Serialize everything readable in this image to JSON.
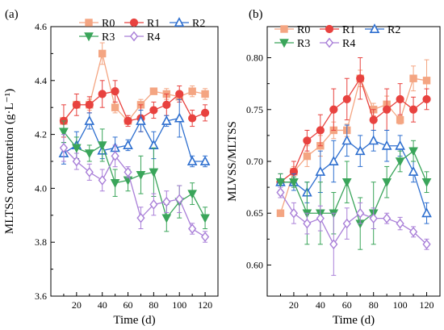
{
  "chart_data": [
    {
      "type": "line",
      "panel_label": "(a)",
      "xlabel": "Time (d)",
      "ylabel": "MLTSS concentration (g·L⁻¹)",
      "xlim": [
        0,
        130
      ],
      "ylim": [
        3.6,
        4.6
      ],
      "xticks": [
        20,
        40,
        60,
        80,
        100,
        120
      ],
      "yticks": [
        3.6,
        3.8,
        4.0,
        4.2,
        4.4,
        4.6
      ],
      "ytick_labels": [
        "3.6",
        "3.8",
        "4.0",
        "4.2",
        "4.4",
        "4.6"
      ],
      "legend_position": "top",
      "x": [
        10,
        20,
        30,
        40,
        50,
        60,
        70,
        80,
        90,
        100,
        110,
        120
      ],
      "series": [
        {
          "name": "R0",
          "values": [
            4.25,
            4.31,
            4.31,
            4.5,
            4.3,
            4.25,
            4.31,
            4.36,
            4.35,
            4.34,
            4.36,
            4.35
          ],
          "errors": [
            0.01,
            0.01,
            0.02,
            0.04,
            0.02,
            0.01,
            0.02,
            0.01,
            0.02,
            0.01,
            0.02,
            0.02
          ]
        },
        {
          "name": "R1",
          "values": [
            4.25,
            4.31,
            4.31,
            4.35,
            4.36,
            4.25,
            4.26,
            4.29,
            4.31,
            4.35,
            4.26,
            4.28
          ],
          "errors": [
            0.06,
            0.04,
            0.03,
            0.05,
            0.04,
            0.02,
            0.05,
            0.03,
            0.04,
            0.03,
            0.03,
            0.03
          ]
        },
        {
          "name": "R2",
          "values": [
            4.13,
            4.16,
            4.25,
            4.14,
            4.15,
            4.16,
            4.25,
            4.16,
            4.25,
            4.26,
            4.1,
            4.1
          ],
          "errors": [
            0.04,
            0.05,
            0.03,
            0.03,
            0.04,
            0.02,
            0.04,
            0.05,
            0.02,
            0.07,
            0.02,
            0.02
          ]
        },
        {
          "name": "R3",
          "values": [
            4.21,
            4.15,
            4.13,
            4.16,
            4.02,
            4.03,
            4.05,
            4.06,
            3.89,
            3.95,
            3.98,
            3.89
          ],
          "errors": [
            0.04,
            0.04,
            0.03,
            0.06,
            0.05,
            0.04,
            0.07,
            0.09,
            0.05,
            0.06,
            0.04,
            0.04
          ]
        },
        {
          "name": "R4",
          "values": [
            4.15,
            4.1,
            4.06,
            4.03,
            4.12,
            4.06,
            3.89,
            3.94,
            3.95,
            3.96,
            3.85,
            3.82
          ],
          "errors": [
            0.05,
            0.03,
            0.03,
            0.04,
            0.04,
            0.02,
            0.04,
            0.04,
            0.04,
            0.05,
            0.02,
            0.02
          ]
        }
      ]
    },
    {
      "type": "line",
      "panel_label": "(b)",
      "xlabel": "Time (d)",
      "ylabel": "MLVSS/MLTSS",
      "xlim": [
        0,
        130
      ],
      "ylim": [
        0.57,
        0.83
      ],
      "xticks": [
        20,
        40,
        60,
        80,
        100,
        120
      ],
      "yticks": [
        0.6,
        0.65,
        0.7,
        0.75,
        0.8
      ],
      "ytick_labels": [
        "0.60",
        "0.65",
        "0.70",
        "0.75",
        "0.80"
      ],
      "legend_position": "top",
      "x": [
        10,
        20,
        30,
        40,
        50,
        60,
        70,
        80,
        90,
        100,
        110,
        120
      ],
      "series": [
        {
          "name": "R0",
          "values": [
            0.65,
            0.69,
            0.705,
            0.715,
            0.73,
            0.73,
            0.78,
            0.75,
            0.755,
            0.74,
            0.78,
            0.778
          ],
          "errors": [
            0.002,
            0.005,
            0.01,
            0.01,
            0.008,
            0.006,
            0.008,
            0.006,
            0.008,
            0.004,
            0.012,
            0.02
          ]
        },
        {
          "name": "R1",
          "values": [
            0.68,
            0.69,
            0.72,
            0.73,
            0.75,
            0.76,
            0.78,
            0.74,
            0.75,
            0.76,
            0.75,
            0.76
          ],
          "errors": [
            0.008,
            0.01,
            0.01,
            0.015,
            0.02,
            0.02,
            0.02,
            0.01,
            0.02,
            0.015,
            0.012,
            0.01
          ]
        },
        {
          "name": "R2",
          "values": [
            0.68,
            0.68,
            0.67,
            0.69,
            0.7,
            0.72,
            0.71,
            0.72,
            0.715,
            0.715,
            0.69,
            0.65
          ],
          "errors": [
            0.008,
            0.008,
            0.01,
            0.02,
            0.02,
            0.015,
            0.015,
            0.01,
            0.015,
            0.01,
            0.01,
            0.01
          ]
        },
        {
          "name": "R3",
          "values": [
            0.68,
            0.68,
            0.65,
            0.65,
            0.65,
            0.68,
            0.64,
            0.65,
            0.68,
            0.7,
            0.71,
            0.68
          ],
          "errors": [
            0.008,
            0.005,
            0.03,
            0.03,
            0.02,
            0.02,
            0.025,
            0.03,
            0.015,
            0.01,
            0.01,
            0.01
          ]
        },
        {
          "name": "R4",
          "values": [
            0.67,
            0.65,
            0.64,
            0.645,
            0.62,
            0.64,
            0.65,
            0.645,
            0.645,
            0.64,
            0.632,
            0.62
          ],
          "errors": [
            0.005,
            0.01,
            0.01,
            0.012,
            0.03,
            0.015,
            0.01,
            0.01,
            0.005,
            0.006,
            0.005,
            0.005
          ]
        }
      ]
    }
  ],
  "series_styles": [
    {
      "name": "R0",
      "color": "#f4a582",
      "marker": "square"
    },
    {
      "name": "R1",
      "color": "#e8423f",
      "marker": "circle"
    },
    {
      "name": "R2",
      "color": "#2e6fcf",
      "marker": "triangle-up"
    },
    {
      "name": "R3",
      "color": "#3aa55a",
      "marker": "triangle-down"
    },
    {
      "name": "R4",
      "color": "#a97fd8",
      "marker": "diamond"
    }
  ]
}
